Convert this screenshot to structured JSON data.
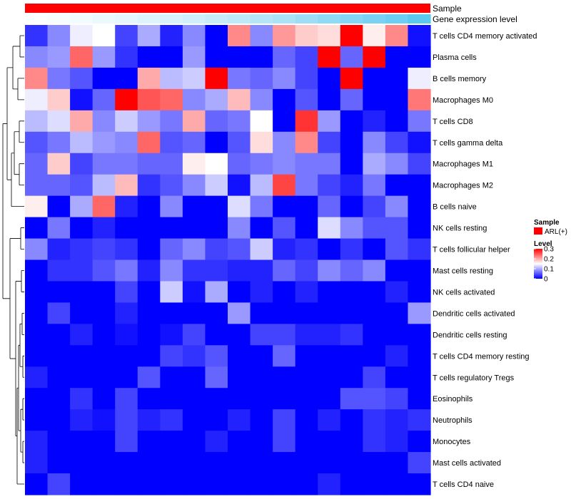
{
  "chart_data": {
    "type": "heatmap",
    "title": "",
    "annotations": [
      "Sample",
      "Gene expression level"
    ],
    "sample_annotation_color": "#ff0000",
    "expression_annotation": {
      "low_color": "#ffffff",
      "high_color": "#5bc8f0",
      "values": [
        0.02,
        0.05,
        0.08,
        0.12,
        0.16,
        0.2,
        0.24,
        0.3,
        0.35,
        0.4,
        0.45,
        0.52,
        0.6,
        0.68,
        0.75,
        0.82,
        0.9,
        1.0
      ]
    },
    "rows": [
      "T cells CD4 memory activated",
      "Plasma cells",
      "B cells memory",
      "Macrophages M0",
      "T cells CD8",
      "T cells gamma delta",
      "Macrophages M1",
      "Macrophages M2",
      "B cells naive",
      "NK cells resting",
      "T cells follicular helper",
      "Mast cells resting",
      "NK cells activated",
      "Dendritic cells activated",
      "Dendritic cells resting",
      "T cells CD4 memory resting",
      "T cells regulatory  Tregs",
      "Eosinophils",
      "Neutrophils",
      "Monocytes",
      "Mast cells activated",
      "T cells CD4 naive"
    ],
    "n_columns": 18,
    "values": [
      [
        0.03,
        0.08,
        0.14,
        0.15,
        0.04,
        0.1,
        0.02,
        0.08,
        0.0,
        0.22,
        0.08,
        0.21,
        0.18,
        0.17,
        0.3,
        0.16,
        0.22,
        0.01
      ],
      [
        0.08,
        0.09,
        0.24,
        0.09,
        0.03,
        0.0,
        0.0,
        0.09,
        0.0,
        0.0,
        0.0,
        0.06,
        0.04,
        0.3,
        0.06,
        0.3,
        0.0,
        0.0
      ],
      [
        0.22,
        0.07,
        0.05,
        0.0,
        0.0,
        0.2,
        0.11,
        0.12,
        0.3,
        0.07,
        0.06,
        0.08,
        0.04,
        0.0,
        0.3,
        0.0,
        0.0,
        0.14
      ],
      [
        0.14,
        0.18,
        0.01,
        0.06,
        0.3,
        0.25,
        0.24,
        0.08,
        0.1,
        0.19,
        0.08,
        0.0,
        0.05,
        0.0,
        0.06,
        0.0,
        0.0,
        0.23
      ],
      [
        0.11,
        0.13,
        0.2,
        0.08,
        0.12,
        0.09,
        0.07,
        0.2,
        0.06,
        0.07,
        0.15,
        0.0,
        0.27,
        0.09,
        0.0,
        0.02,
        0.0,
        0.07
      ],
      [
        0.05,
        0.07,
        0.11,
        0.09,
        0.08,
        0.24,
        0.05,
        0.06,
        0.0,
        0.05,
        0.17,
        0.08,
        0.22,
        0.04,
        0.0,
        0.08,
        0.04,
        0.01
      ],
      [
        0.06,
        0.18,
        0.04,
        0.07,
        0.07,
        0.06,
        0.06,
        0.16,
        0.15,
        0.06,
        0.07,
        0.08,
        0.07,
        0.07,
        0.0,
        0.1,
        0.08,
        0.04
      ],
      [
        0.06,
        0.06,
        0.05,
        0.11,
        0.19,
        0.03,
        0.05,
        0.08,
        0.12,
        0.01,
        0.11,
        0.26,
        0.07,
        0.04,
        0.02,
        0.07,
        0.0,
        0.0
      ],
      [
        0.16,
        0.0,
        0.1,
        0.24,
        0.02,
        0.0,
        0.08,
        0.0,
        0.0,
        0.13,
        0.07,
        0.0,
        0.0,
        0.06,
        0.0,
        0.04,
        0.08,
        0.0
      ],
      [
        0.0,
        0.07,
        0.0,
        0.02,
        0.0,
        0.0,
        0.0,
        0.0,
        0.0,
        0.08,
        0.0,
        0.05,
        0.0,
        0.13,
        0.08,
        0.05,
        0.05,
        0.0
      ],
      [
        0.08,
        0.02,
        0.03,
        0.04,
        0.03,
        0.0,
        0.06,
        0.08,
        0.04,
        0.05,
        0.12,
        0.02,
        0.03,
        0.0,
        0.03,
        0.0,
        0.05,
        0.03
      ],
      [
        0.0,
        0.03,
        0.03,
        0.05,
        0.07,
        0.02,
        0.08,
        0.03,
        0.03,
        0.02,
        0.02,
        0.06,
        0.04,
        0.08,
        0.06,
        0.08,
        0.0,
        0.0
      ],
      [
        0.0,
        0.0,
        0.0,
        0.0,
        0.04,
        0.0,
        0.12,
        0.01,
        0.1,
        0.0,
        0.02,
        0.0,
        0.02,
        0.0,
        0.0,
        0.0,
        0.02,
        0.0
      ],
      [
        0.0,
        0.04,
        0.0,
        0.0,
        0.02,
        0.0,
        0.0,
        0.0,
        0.0,
        0.09,
        0.0,
        0.0,
        0.0,
        0.0,
        0.0,
        0.0,
        0.0,
        0.09
      ],
      [
        0.0,
        0.0,
        0.02,
        0.0,
        0.01,
        0.0,
        0.01,
        0.04,
        0.0,
        0.0,
        0.04,
        0.04,
        0.02,
        0.02,
        0.03,
        0.0,
        0.0,
        0.0
      ],
      [
        0.0,
        0.0,
        0.0,
        0.0,
        0.0,
        0.0,
        0.04,
        0.03,
        0.05,
        0.0,
        0.0,
        0.06,
        0.0,
        0.0,
        0.0,
        0.0,
        0.02,
        0.0
      ],
      [
        0.02,
        0.0,
        0.0,
        0.0,
        0.0,
        0.05,
        0.0,
        0.0,
        0.06,
        0.0,
        0.0,
        0.0,
        0.0,
        0.0,
        0.0,
        0.04,
        0.0,
        0.0
      ],
      [
        0.0,
        0.0,
        0.03,
        0.0,
        0.04,
        0.0,
        0.0,
        0.0,
        0.0,
        0.0,
        0.0,
        0.0,
        0.0,
        0.0,
        0.05,
        0.05,
        0.04,
        0.0
      ],
      [
        0.0,
        0.0,
        0.02,
        0.01,
        0.04,
        0.02,
        0.03,
        0.0,
        0.0,
        0.02,
        0.0,
        0.04,
        0.0,
        0.02,
        0.0,
        0.03,
        0.02,
        0.03
      ],
      [
        0.02,
        0.0,
        0.0,
        0.0,
        0.04,
        0.0,
        0.0,
        0.0,
        0.02,
        0.0,
        0.0,
        0.04,
        0.0,
        0.0,
        0.0,
        0.03,
        0.02,
        0.0
      ],
      [
        0.02,
        0.0,
        0.0,
        0.0,
        0.0,
        0.0,
        0.0,
        0.0,
        0.0,
        0.0,
        0.0,
        0.0,
        0.0,
        0.0,
        0.0,
        0.0,
        0.0,
        0.04
      ],
      [
        0.0,
        0.04,
        0.0,
        0.0,
        0.0,
        0.0,
        0.0,
        0.0,
        0.0,
        0.0,
        0.0,
        0.0,
        0.0,
        0.02,
        0.0,
        0.0,
        0.0,
        0.0
      ]
    ],
    "color_scale": {
      "min": 0,
      "mid": 0.15,
      "max": 0.3,
      "low_color": "#0000ff",
      "mid_color": "#ffffff",
      "high_color": "#ff0000"
    },
    "legend": {
      "sample_title": "Sample",
      "sample_item": "ARL(+)",
      "level_title": "Level",
      "level_ticks": [
        "0.3",
        "0.2",
        "0.1",
        "0"
      ],
      "level_tick_values": [
        0.3,
        0.2,
        0.1,
        0
      ]
    },
    "row_dendrogram": true
  }
}
